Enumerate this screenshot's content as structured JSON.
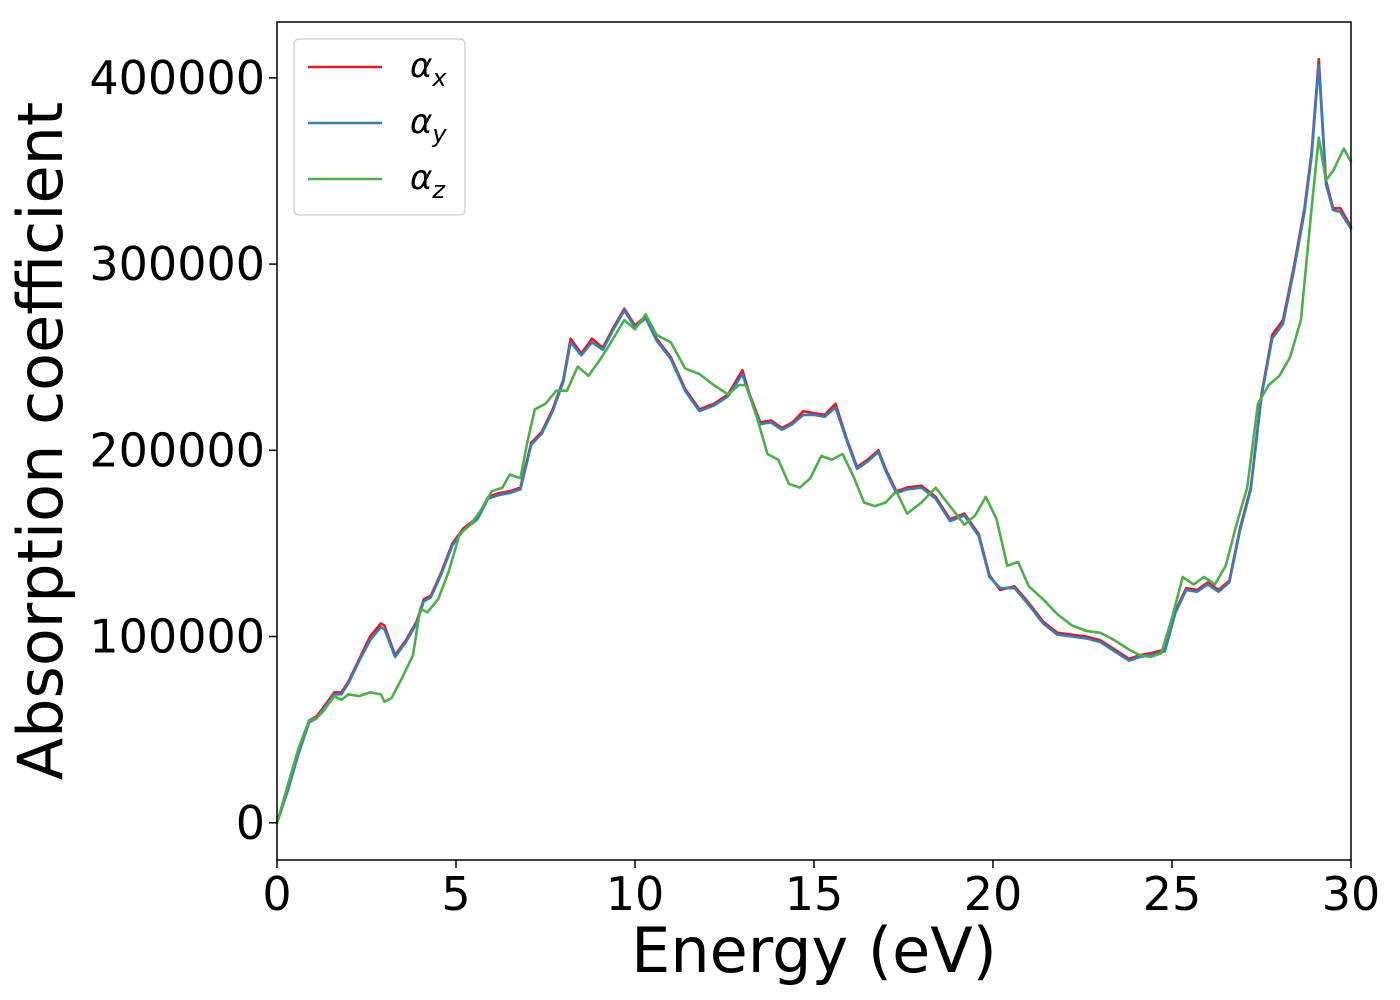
{
  "chart_data": {
    "type": "line",
    "xlabel": "Energy (eV)",
    "ylabel": "Absorption coefficient",
    "xlim": [
      0,
      30
    ],
    "ylim": [
      -20000,
      430000
    ],
    "xticks": [
      "0",
      "5",
      "10",
      "15",
      "20",
      "25",
      "30"
    ],
    "yticks": [
      "0",
      "100000",
      "200000",
      "300000",
      "400000"
    ],
    "grid": false,
    "legend_position": "top-left",
    "series": [
      {
        "name": "α",
        "subscript": "x",
        "color": "#e41a1c",
        "x": [
          0,
          0.3,
          0.6,
          0.9,
          1.1,
          1.3,
          1.6,
          1.8,
          2.0,
          2.3,
          2.6,
          2.9,
          3.0,
          3.2,
          3.3,
          3.6,
          3.9,
          4.1,
          4.3,
          4.6,
          4.9,
          5.2,
          5.6,
          5.9,
          6.2,
          6.5,
          6.8,
          7.1,
          7.4,
          7.7,
          8.0,
          8.2,
          8.5,
          8.8,
          9.1,
          9.4,
          9.7,
          10.0,
          10.3,
          10.6,
          11.0,
          11.4,
          11.8,
          12.2,
          12.6,
          13.0,
          13.2,
          13.5,
          13.8,
          14.1,
          14.4,
          14.7,
          15.0,
          15.3,
          15.6,
          15.9,
          16.2,
          16.5,
          16.8,
          17.0,
          17.3,
          17.6,
          18.0,
          18.4,
          18.8,
          19.2,
          19.6,
          19.9,
          20.2,
          20.6,
          21.0,
          21.4,
          21.8,
          22.2,
          22.6,
          23.0,
          23.4,
          23.8,
          24.1,
          24.4,
          24.8,
          25.1,
          25.4,
          25.7,
          26.0,
          26.3,
          26.6,
          26.9,
          27.2,
          27.5,
          27.8,
          28.1,
          28.4,
          28.7,
          28.9,
          29.1,
          29.3,
          29.5,
          29.7,
          30.0
        ],
        "y": [
          0,
          18000,
          38000,
          55000,
          57000,
          62000,
          70000,
          70000,
          76000,
          88000,
          100000,
          107000,
          106000,
          95000,
          90000,
          98000,
          108000,
          120000,
          122000,
          135000,
          150000,
          158000,
          164000,
          175000,
          177000,
          178000,
          180000,
          204000,
          210000,
          222000,
          238000,
          260000,
          252000,
          260000,
          255000,
          266000,
          276000,
          267000,
          272000,
          260000,
          250000,
          233000,
          222000,
          225000,
          230000,
          243000,
          230000,
          215000,
          216000,
          212000,
          215000,
          221000,
          220000,
          219000,
          225000,
          207000,
          191000,
          195000,
          200000,
          190000,
          178000,
          180000,
          181000,
          175000,
          163000,
          166000,
          155000,
          133000,
          125000,
          127000,
          118000,
          108000,
          102000,
          101000,
          100000,
          98000,
          93000,
          88000,
          90000,
          91000,
          93000,
          114000,
          126000,
          125000,
          129000,
          125000,
          130000,
          158000,
          180000,
          230000,
          262000,
          270000,
          298000,
          330000,
          360000,
          410000,
          345000,
          330000,
          330000,
          320000
        ]
      },
      {
        "name": "α",
        "subscript": "y",
        "color": "#377eb8",
        "x": [
          0,
          0.3,
          0.6,
          0.9,
          1.1,
          1.3,
          1.6,
          1.8,
          2.0,
          2.3,
          2.6,
          2.9,
          3.0,
          3.2,
          3.3,
          3.6,
          3.9,
          4.1,
          4.3,
          4.6,
          4.9,
          5.2,
          5.6,
          5.9,
          6.2,
          6.5,
          6.8,
          7.1,
          7.4,
          7.7,
          8.0,
          8.2,
          8.5,
          8.8,
          9.1,
          9.4,
          9.7,
          10.0,
          10.3,
          10.6,
          11.0,
          11.4,
          11.8,
          12.2,
          12.6,
          13.0,
          13.2,
          13.5,
          13.8,
          14.1,
          14.4,
          14.7,
          15.0,
          15.3,
          15.6,
          15.9,
          16.2,
          16.5,
          16.8,
          17.0,
          17.3,
          17.6,
          18.0,
          18.4,
          18.8,
          19.2,
          19.6,
          19.9,
          20.2,
          20.6,
          21.0,
          21.4,
          21.8,
          22.2,
          22.6,
          23.0,
          23.4,
          23.8,
          24.1,
          24.4,
          24.8,
          25.1,
          25.4,
          25.7,
          26.0,
          26.3,
          26.6,
          26.9,
          27.2,
          27.5,
          27.8,
          28.1,
          28.4,
          28.7,
          28.9,
          29.1,
          29.3,
          29.5,
          29.7,
          30.0
        ],
        "y": [
          0,
          17000,
          37000,
          54000,
          56000,
          61000,
          69000,
          69000,
          75000,
          87000,
          98000,
          105000,
          104000,
          94000,
          89000,
          97000,
          107000,
          119000,
          121000,
          134000,
          149000,
          157000,
          163000,
          174000,
          176000,
          177000,
          179000,
          203000,
          209000,
          221000,
          237000,
          258000,
          251000,
          258000,
          254000,
          265000,
          275000,
          266000,
          271000,
          259000,
          249000,
          232000,
          221000,
          224000,
          229000,
          241000,
          229000,
          214000,
          215000,
          211000,
          214000,
          219000,
          219000,
          218000,
          223000,
          206000,
          190000,
          194000,
          199000,
          189000,
          177000,
          179000,
          180000,
          174000,
          162000,
          165000,
          154000,
          132000,
          126000,
          126000,
          117000,
          107000,
          101000,
          100000,
          99000,
          97000,
          92000,
          87000,
          89000,
          90000,
          92000,
          113000,
          125000,
          124000,
          128000,
          124000,
          129000,
          157000,
          179000,
          229000,
          260000,
          268000,
          296000,
          328000,
          358000,
          407000,
          343000,
          329000,
          328000,
          319000
        ]
      },
      {
        "name": "α",
        "subscript": "z",
        "color": "#4daf4a",
        "x": [
          0,
          0.3,
          0.6,
          0.9,
          1.1,
          1.3,
          1.6,
          1.8,
          2.0,
          2.3,
          2.6,
          2.9,
          3.0,
          3.2,
          3.5,
          3.8,
          4.0,
          4.2,
          4.5,
          4.8,
          5.1,
          5.4,
          5.7,
          6.0,
          6.3,
          6.5,
          6.8,
          7.0,
          7.2,
          7.5,
          7.8,
          8.1,
          8.4,
          8.7,
          9.0,
          9.3,
          9.7,
          10.0,
          10.3,
          10.6,
          11.0,
          11.4,
          11.8,
          12.2,
          12.6,
          12.9,
          13.1,
          13.4,
          13.7,
          14.0,
          14.3,
          14.6,
          14.9,
          15.2,
          15.5,
          15.8,
          16.1,
          16.4,
          16.7,
          17.0,
          17.3,
          17.6,
          18.0,
          18.4,
          18.8,
          19.2,
          19.5,
          19.8,
          20.1,
          20.4,
          20.7,
          21.0,
          21.4,
          21.8,
          22.2,
          22.6,
          23.0,
          23.4,
          23.8,
          24.1,
          24.4,
          24.7,
          25.0,
          25.3,
          25.6,
          25.9,
          26.2,
          26.5,
          26.8,
          27.1,
          27.4,
          27.7,
          28.0,
          28.3,
          28.6,
          28.9,
          29.1,
          29.3,
          29.5,
          29.8,
          30.0
        ],
        "y": [
          0,
          20000,
          40000,
          55000,
          56000,
          60000,
          68000,
          66000,
          69000,
          68000,
          70000,
          69000,
          65000,
          67000,
          78000,
          90000,
          115000,
          113000,
          120000,
          135000,
          155000,
          160000,
          168000,
          178000,
          180000,
          187000,
          185000,
          205000,
          222000,
          225000,
          232000,
          232000,
          245000,
          240000,
          248000,
          257000,
          270000,
          265000,
          273000,
          262000,
          258000,
          244000,
          241000,
          235000,
          230000,
          235000,
          235000,
          218000,
          198000,
          195000,
          182000,
          180000,
          185000,
          197000,
          195000,
          198000,
          186000,
          172000,
          170000,
          172000,
          178000,
          166000,
          172000,
          180000,
          170000,
          160000,
          165000,
          175000,
          163000,
          138000,
          140000,
          127000,
          120000,
          112000,
          106000,
          103000,
          102000,
          98000,
          93000,
          90000,
          89000,
          91000,
          110000,
          132000,
          128000,
          132000,
          128000,
          138000,
          160000,
          180000,
          225000,
          235000,
          240000,
          250000,
          270000,
          330000,
          368000,
          345000,
          350000,
          362000,
          355000
        ]
      }
    ]
  }
}
